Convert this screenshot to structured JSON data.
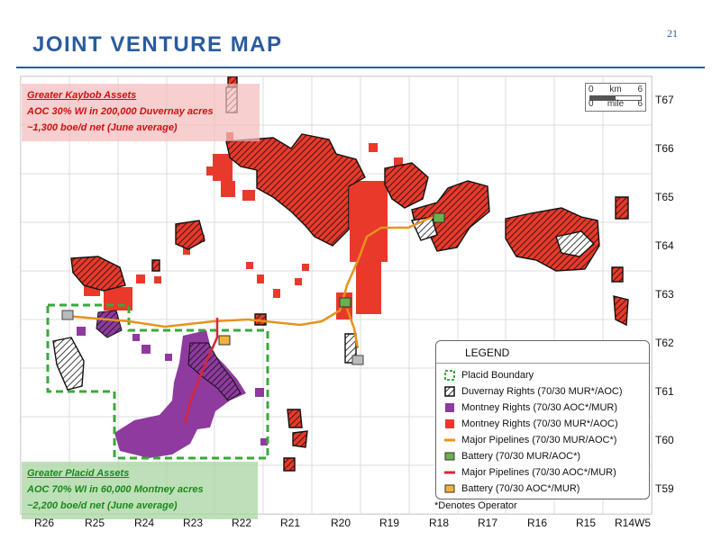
{
  "slide": {
    "title": "JOINT VENTURE MAP",
    "page_number": "21"
  },
  "township_labels": [
    "T67",
    "T66",
    "T65",
    "T64",
    "T63",
    "T62",
    "T61",
    "T60",
    "T59"
  ],
  "range_labels": [
    "R26",
    "R25",
    "R24",
    "R23",
    "R22",
    "R21",
    "R20",
    "R19",
    "R18",
    "R17",
    "R16",
    "R15",
    "R14W5"
  ],
  "callouts": {
    "kaybob": {
      "heading": "Greater Kaybob Assets",
      "line1": "AOC 30% WI in 200,000 Duvernay acres",
      "line2": "~1,300 boe/d net (June average)"
    },
    "placid": {
      "heading": "Greater Placid Assets",
      "line1": "AOC 70% WI in 60,000 Montney acres",
      "line2": "~2,200 boe/d net (June average)"
    }
  },
  "scale_bar": {
    "top_left": "0",
    "km_label": "km",
    "km_value": "6",
    "bottom_left": "0",
    "mile_label": "mile",
    "mile_value": "6"
  },
  "legend": {
    "title": "LEGEND",
    "items": [
      {
        "label": "Placid Boundary",
        "symbol": "dashed-green-square-icon"
      },
      {
        "label": "Duvernay Rights (70/30 MUR*/AOC)",
        "symbol": "hatched-black-square-icon"
      },
      {
        "label": "Montney Rights (70/30 AOC*/MUR)",
        "symbol": "purple-square-icon"
      },
      {
        "label": "Montney Rights (70/30 MUR*/AOC)",
        "symbol": "red-square-icon"
      },
      {
        "label": "Major Pipelines (70/30 MUR/AOC*)",
        "symbol": "orange-line-icon"
      },
      {
        "label": "Battery (70/30 MUR/AOC*)",
        "symbol": "battery-green-icon"
      },
      {
        "label": "Major Pipelines (70/30 AOC*/MUR)",
        "symbol": "red-line-icon"
      },
      {
        "label": "Battery (70/30 AOC*/MUR)",
        "symbol": "battery-orange-icon"
      }
    ]
  },
  "footnote": "*Denotes Operator",
  "colors": {
    "title_blue": "#2a5b9e",
    "grid": "#d9d9d9",
    "montney_mur": "#e8392b",
    "montney_aoc": "#8e3a9e",
    "pipeline_mur": "#e8921f",
    "pipeline_aoc": "#d8263a",
    "placid_boundary": "#3aa83a"
  }
}
